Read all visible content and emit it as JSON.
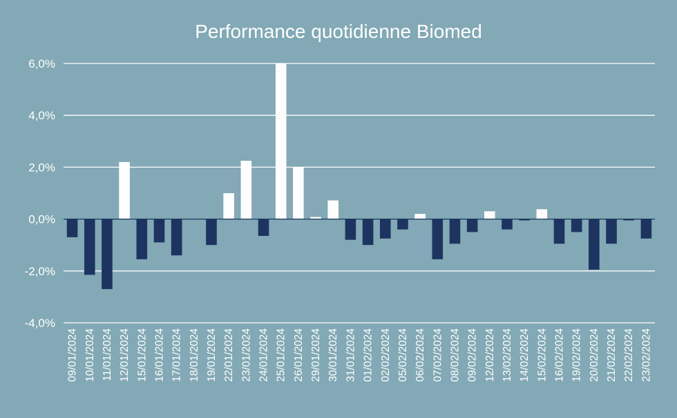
{
  "chart_data": {
    "type": "bar",
    "title": "Performance quotidienne Biomed",
    "xlabel": "",
    "ylabel": "",
    "ylim": [
      -4,
      6
    ],
    "yticks": [
      -4,
      -2,
      0,
      2,
      4,
      6
    ],
    "ytick_labels": [
      "-4,0%",
      "-2,0%",
      "0,0%",
      "2,0%",
      "4,0%",
      "6,0%"
    ],
    "grid": true,
    "legend": "none",
    "colors": {
      "background": "#82a9b5",
      "positive": "#ffffff",
      "negative": "#1d3461",
      "text": "#ffffff",
      "grid": "#ffffff"
    },
    "categories": [
      "09/01/2024",
      "10/01/2024",
      "11/01/2024",
      "12/01/2024",
      "15/01/2024",
      "16/01/2024",
      "17/01/2024",
      "18/01/2024",
      "19/01/2024",
      "22/01/2024",
      "23/01/2024",
      "24/01/2024",
      "25/01/2024",
      "26/01/2024",
      "29/01/2024",
      "30/01/2024",
      "31/01/2024",
      "01/02/2024",
      "02/02/2024",
      "05/02/2024",
      "06/02/2024",
      "07/02/2024",
      "08/02/2024",
      "09/02/2024",
      "12/02/2024",
      "13/02/2024",
      "14/02/2024",
      "15/02/2024",
      "16/02/2024",
      "19/02/2024",
      "20/02/2024",
      "21/02/2024",
      "22/02/2024",
      "23/02/2024"
    ],
    "values": [
      -0.7,
      -2.15,
      -2.7,
      2.2,
      -1.55,
      -0.9,
      -1.4,
      0,
      -1.0,
      1.0,
      2.25,
      -0.65,
      6.0,
      2.0,
      0.08,
      0.72,
      -0.8,
      -1.0,
      -0.75,
      -0.4,
      0.2,
      -1.55,
      -0.95,
      -0.5,
      0.3,
      -0.4,
      -0.05,
      0.38,
      -0.95,
      -0.5,
      -1.95,
      -0.95,
      -0.05,
      -0.75
    ]
  }
}
